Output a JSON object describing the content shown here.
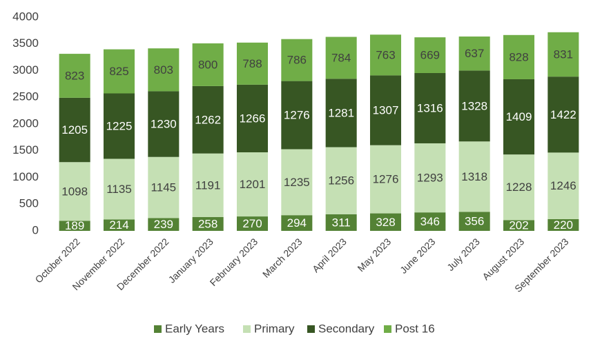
{
  "chart_data": {
    "type": "stacked_bar",
    "categories": [
      "October 2022",
      "November 2022",
      "December 2022",
      "January 2023",
      "February 2023",
      "March 2023",
      "April 2023",
      "May 2023",
      "June 2023",
      "July 2023",
      "August 2023",
      "September 2023"
    ],
    "series": [
      {
        "name": "Early Years",
        "color": "#548235",
        "values": [
          189,
          214,
          239,
          258,
          270,
          294,
          311,
          328,
          346,
          356,
          202,
          220
        ]
      },
      {
        "name": "Primary",
        "color": "#c5e0b4",
        "values": [
          1098,
          1135,
          1145,
          1191,
          1201,
          1235,
          1256,
          1276,
          1293,
          1318,
          1228,
          1246
        ]
      },
      {
        "name": "Secondary",
        "color": "#375623",
        "values": [
          1205,
          1225,
          1230,
          1262,
          1266,
          1276,
          1281,
          1307,
          1316,
          1328,
          1409,
          1422
        ]
      },
      {
        "name": "Post 16",
        "color": "#70ad47",
        "values": [
          823,
          825,
          803,
          800,
          788,
          786,
          784,
          763,
          669,
          637,
          828,
          831
        ]
      }
    ],
    "ylim": [
      0,
      4000
    ],
    "yticks": [
      0,
      500,
      1000,
      1500,
      2000,
      2500,
      3000,
      3500,
      4000
    ],
    "legend": "bottom"
  }
}
